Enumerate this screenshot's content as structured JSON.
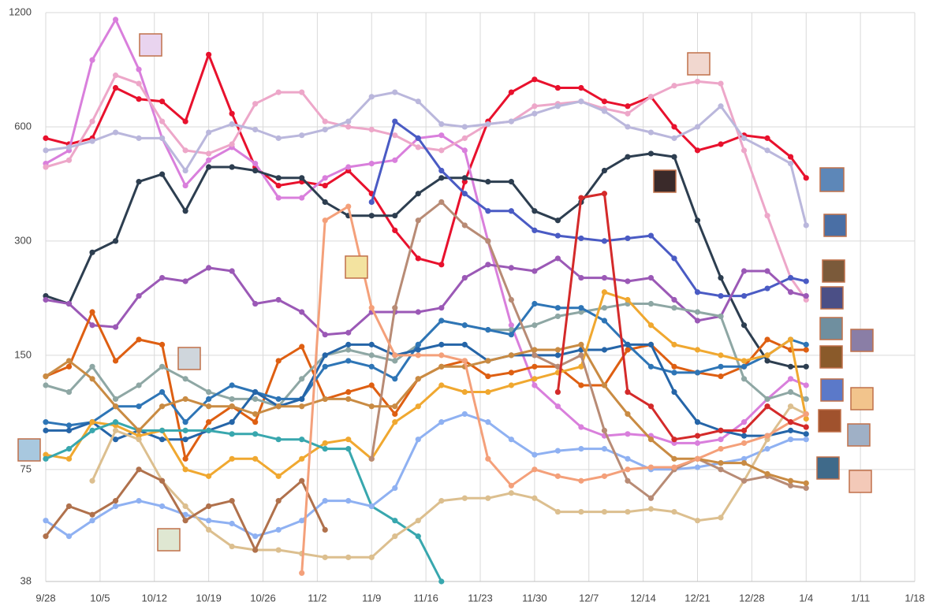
{
  "chart_data": {
    "type": "line",
    "log": true,
    "grid": true,
    "xlim": [
      0,
      112
    ],
    "ylim": [
      38,
      1200
    ],
    "yticks": [
      38,
      75,
      150,
      300,
      600,
      1200
    ],
    "xticks": [
      {
        "value": 0,
        "label": "9/28"
      },
      {
        "value": 7,
        "label": "10/5"
      },
      {
        "value": 14,
        "label": "10/12"
      },
      {
        "value": 21,
        "label": "10/19"
      },
      {
        "value": 28,
        "label": "10/26"
      },
      {
        "value": 35,
        "label": "11/2"
      },
      {
        "value": 42,
        "label": "11/9"
      },
      {
        "value": 49,
        "label": "11/16"
      },
      {
        "value": 56,
        "label": "11/23"
      },
      {
        "value": 63,
        "label": "11/30"
      },
      {
        "value": 70,
        "label": "12/7"
      },
      {
        "value": 77,
        "label": "12/14"
      },
      {
        "value": 84,
        "label": "12/21"
      },
      {
        "value": 91,
        "label": "12/28"
      },
      {
        "value": 98,
        "label": "1/4"
      },
      {
        "value": 105,
        "label": "1/11"
      },
      {
        "value": 112,
        "label": "1/18"
      }
    ],
    "x": [
      0,
      3,
      6,
      9,
      12,
      15,
      18,
      21,
      24,
      27,
      30,
      33,
      36,
      39,
      42,
      45,
      48,
      51,
      54,
      57,
      60,
      63,
      66,
      69,
      72,
      75,
      78,
      81,
      84,
      87,
      90,
      93,
      96,
      98
    ],
    "series": [
      {
        "color": "#e8112d",
        "values": [
          560,
          540,
          560,
          760,
          710,
          700,
          620,
          930,
          650,
          470,
          420,
          430,
          420,
          460,
          400,
          320,
          270,
          260,
          430,
          620,
          740,
          800,
          760,
          760,
          700,
          680,
          720,
          600,
          520,
          540,
          570,
          560,
          500,
          440
        ]
      },
      {
        "color": "#d97fdc",
        "values": [
          480,
          520,
          900,
          1150,
          850,
          560,
          420,
          490,
          530,
          480,
          390,
          390,
          440,
          470,
          480,
          490,
          560,
          570,
          520,
          300,
          180,
          125,
          110,
          97,
          92,
          93,
          92,
          88,
          88,
          90,
          100,
          115,
          130,
          125
        ]
      },
      {
        "color": "#eda7c9",
        "values": [
          470,
          490,
          620,
          820,
          780,
          620,
          520,
          510,
          540,
          690,
          740,
          740,
          620,
          600,
          590,
          570,
          530,
          520,
          560,
          610,
          620,
          680,
          690,
          700,
          670,
          650,
          720,
          770,
          790,
          780,
          520,
          350,
          240,
          210
        ]
      },
      {
        "color": "#bab7dc",
        "values": [
          520,
          530,
          550,
          580,
          560,
          560,
          460,
          580,
          610,
          590,
          560,
          570,
          590,
          620,
          720,
          740,
          700,
          610,
          600,
          610,
          620,
          650,
          680,
          700,
          660,
          600,
          580,
          560,
          600,
          680,
          560,
          520,
          480,
          330
        ]
      },
      {
        "color": "#2d3e50",
        "values": [
          215,
          205,
          280,
          300,
          430,
          450,
          360,
          470,
          470,
          460,
          440,
          440,
          380,
          350,
          350,
          350,
          400,
          440,
          440,
          430,
          430,
          360,
          340,
          380,
          460,
          500,
          510,
          500,
          340,
          240,
          180,
          145,
          140,
          140
        ]
      },
      {
        "color": "#4a5bc4",
        "values": [
          null,
          null,
          null,
          null,
          null,
          null,
          null,
          null,
          null,
          null,
          null,
          null,
          null,
          null,
          380,
          620,
          560,
          460,
          400,
          360,
          360,
          320,
          310,
          305,
          300,
          305,
          310,
          270,
          220,
          215,
          215,
          225,
          240,
          235
        ]
      },
      {
        "color": "#9b59b6",
        "values": [
          210,
          205,
          180,
          178,
          215,
          240,
          235,
          255,
          250,
          205,
          210,
          195,
          170,
          172,
          195,
          195,
          195,
          200,
          240,
          260,
          255,
          250,
          270,
          240,
          240,
          235,
          240,
          210,
          185,
          190,
          250,
          250,
          220,
          215
        ]
      },
      {
        "color": "#de5f12",
        "values": [
          132,
          140,
          195,
          145,
          165,
          160,
          80,
          100,
          110,
          100,
          145,
          158,
          115,
          120,
          125,
          105,
          130,
          140,
          145,
          132,
          135,
          140,
          140,
          125,
          125,
          155,
          160,
          140,
          135,
          132,
          140,
          165,
          155,
          155
        ]
      },
      {
        "color": "#8ea7a4",
        "values": [
          125,
          120,
          140,
          115,
          125,
          140,
          130,
          120,
          115,
          115,
          110,
          130,
          150,
          155,
          150,
          145,
          160,
          185,
          180,
          175,
          175,
          180,
          190,
          195,
          200,
          205,
          205,
          200,
          195,
          190,
          130,
          115,
          120,
          115
        ]
      },
      {
        "color": "#2e75b6",
        "values": [
          100,
          98,
          100,
          110,
          110,
          120,
          100,
          115,
          125,
          120,
          115,
          115,
          140,
          145,
          140,
          130,
          160,
          185,
          180,
          175,
          170,
          205,
          200,
          200,
          185,
          160,
          140,
          135,
          135,
          140,
          140,
          150,
          165,
          160
        ]
      },
      {
        "color": "#2565a8",
        "values": [
          95,
          95,
          100,
          90,
          95,
          90,
          90,
          95,
          100,
          120,
          110,
          115,
          150,
          160,
          160,
          150,
          155,
          160,
          160,
          145,
          150,
          150,
          150,
          155,
          155,
          160,
          160,
          120,
          100,
          95,
          92,
          92,
          95,
          93
        ]
      },
      {
        "color": "#f0a830",
        "values": [
          82,
          80,
          100,
          98,
          92,
          95,
          75,
          72,
          80,
          80,
          72,
          80,
          88,
          90,
          80,
          100,
          110,
          125,
          120,
          120,
          125,
          130,
          135,
          140,
          220,
          210,
          180,
          160,
          155,
          150,
          145,
          150,
          165,
          102
        ]
      },
      {
        "color": "#38a7ae",
        "values": [
          80,
          85,
          95,
          100,
          95,
          95,
          95,
          95,
          93,
          93,
          90,
          90,
          85,
          85,
          60,
          55,
          50,
          38,
          null,
          null,
          null,
          null,
          null,
          null,
          null,
          null,
          null,
          null,
          null,
          null,
          null,
          null,
          null,
          null
        ]
      },
      {
        "color": "#8fb1f2",
        "values": [
          55,
          50,
          55,
          60,
          62,
          60,
          57,
          55,
          54,
          50,
          52,
          55,
          62,
          62,
          60,
          67,
          90,
          100,
          105,
          100,
          90,
          82,
          84,
          85,
          85,
          80,
          75,
          75,
          76,
          78,
          80,
          85,
          90,
          90
        ]
      },
      {
        "color": "#dcbf8f",
        "values": [
          null,
          null,
          70,
          95,
          90,
          70,
          60,
          52,
          47,
          46,
          46,
          45,
          44,
          44,
          44,
          50,
          55,
          62,
          63,
          63,
          65,
          63,
          58,
          58,
          58,
          58,
          59,
          58,
          55,
          56,
          70,
          90,
          110,
          105
        ]
      },
      {
        "color": "#b0714c",
        "values": [
          50,
          60,
          57,
          62,
          75,
          70,
          55,
          60,
          62,
          46,
          62,
          70,
          52,
          null,
          null,
          null,
          null,
          null,
          null,
          null,
          null,
          null,
          null,
          null,
          null,
          null,
          null,
          null,
          null,
          null,
          null,
          null,
          null,
          null
        ]
      },
      {
        "color": "#b88b75",
        "values": [
          null,
          null,
          null,
          null,
          null,
          null,
          null,
          null,
          null,
          null,
          null,
          null,
          null,
          null,
          80,
          200,
          340,
          380,
          330,
          300,
          210,
          150,
          140,
          150,
          95,
          70,
          63,
          75,
          80,
          75,
          70,
          72,
          68,
          67
        ]
      },
      {
        "color": "#c98b43",
        "values": [
          132,
          145,
          130,
          110,
          95,
          110,
          115,
          110,
          110,
          105,
          110,
          110,
          115,
          115,
          110,
          110,
          130,
          140,
          140,
          145,
          150,
          155,
          155,
          160,
          125,
          105,
          90,
          80,
          80,
          78,
          78,
          73,
          70,
          69
        ]
      },
      {
        "color": "#f4a07a",
        "values": [
          null,
          null,
          null,
          null,
          null,
          null,
          null,
          null,
          null,
          null,
          null,
          40,
          340,
          370,
          200,
          150,
          150,
          150,
          145,
          80,
          68,
          75,
          72,
          70,
          72,
          75,
          76,
          76,
          80,
          85,
          88,
          92,
          100,
          105
        ]
      },
      {
        "color": "#d42a2a",
        "values": [
          null,
          null,
          null,
          null,
          null,
          null,
          null,
          null,
          null,
          null,
          null,
          null,
          null,
          null,
          null,
          null,
          null,
          null,
          null,
          null,
          null,
          null,
          120,
          390,
          400,
          120,
          110,
          90,
          92,
          95,
          95,
          110,
          100,
          97
        ]
      }
    ]
  }
}
